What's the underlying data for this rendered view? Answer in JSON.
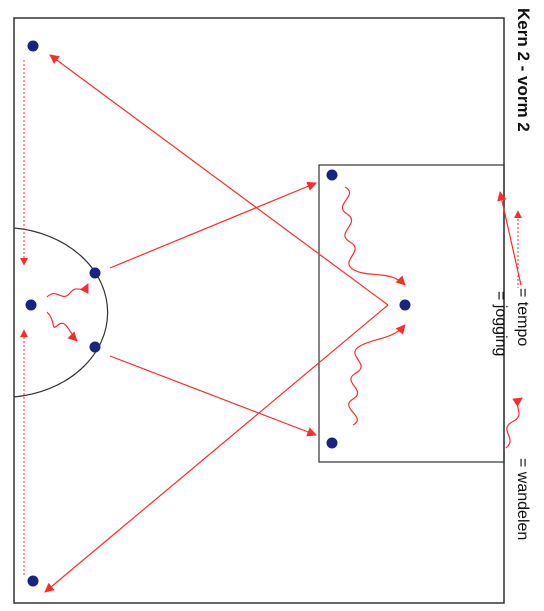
{
  "title": "Kern 2 - vorm 2",
  "legend": [
    {
      "key": "tempo",
      "label": "= tempo",
      "style": "solid-arrow"
    },
    {
      "key": "jogging",
      "label": "= jogging",
      "style": "dotted-arrow"
    },
    {
      "key": "wandelen",
      "label": "= wandelen",
      "style": "wavy-arrow"
    }
  ],
  "colors": {
    "field_line": "#333333",
    "arrow": "#ff2a2a",
    "player": "#1a237e"
  }
}
